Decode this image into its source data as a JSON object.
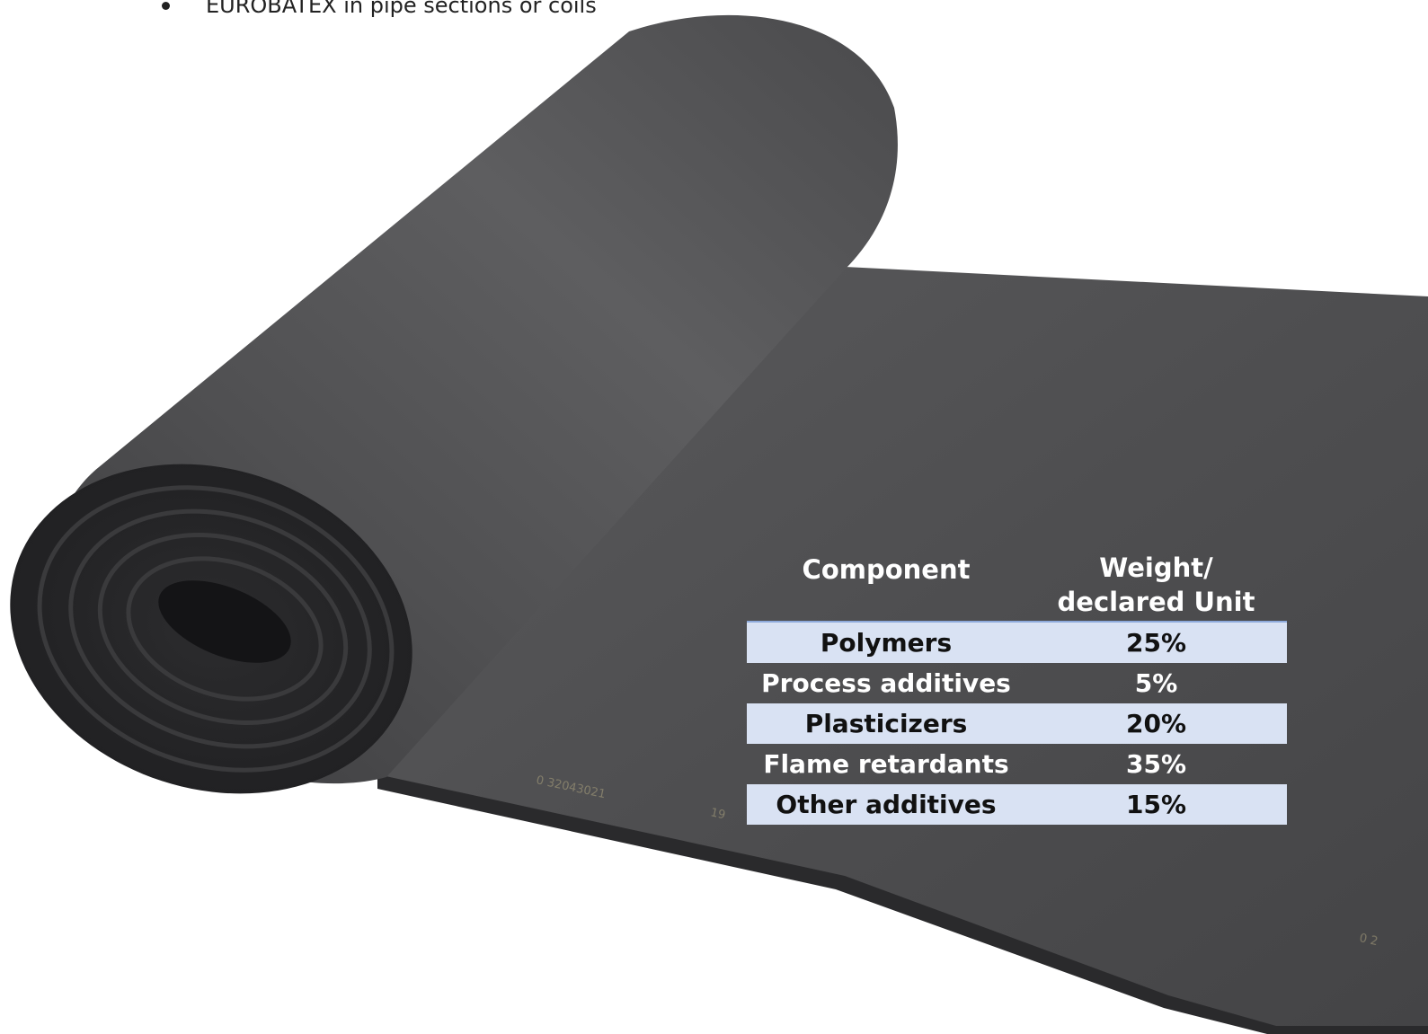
{
  "bullet": {
    "text": "EUROBATEX in pipe sections or coils"
  },
  "table": {
    "header": {
      "component": "Component",
      "weight_line1": "Weight/",
      "weight_line2": "declared Unit"
    },
    "rows": [
      {
        "component": "Polymers",
        "weight": "25%"
      },
      {
        "component": "Process additives",
        "weight": "5%"
      },
      {
        "component": "Plasticizers",
        "weight": "20%"
      },
      {
        "component": "Flame retardants",
        "weight": "35%"
      },
      {
        "component": "Other additives",
        "weight": "15%"
      }
    ]
  },
  "colors": {
    "row_shade": "#d9e2f3",
    "header_rule": "#8eaadb",
    "foam_sheet": "#4f4f51",
    "foam_edge": "#2a2a2c"
  }
}
